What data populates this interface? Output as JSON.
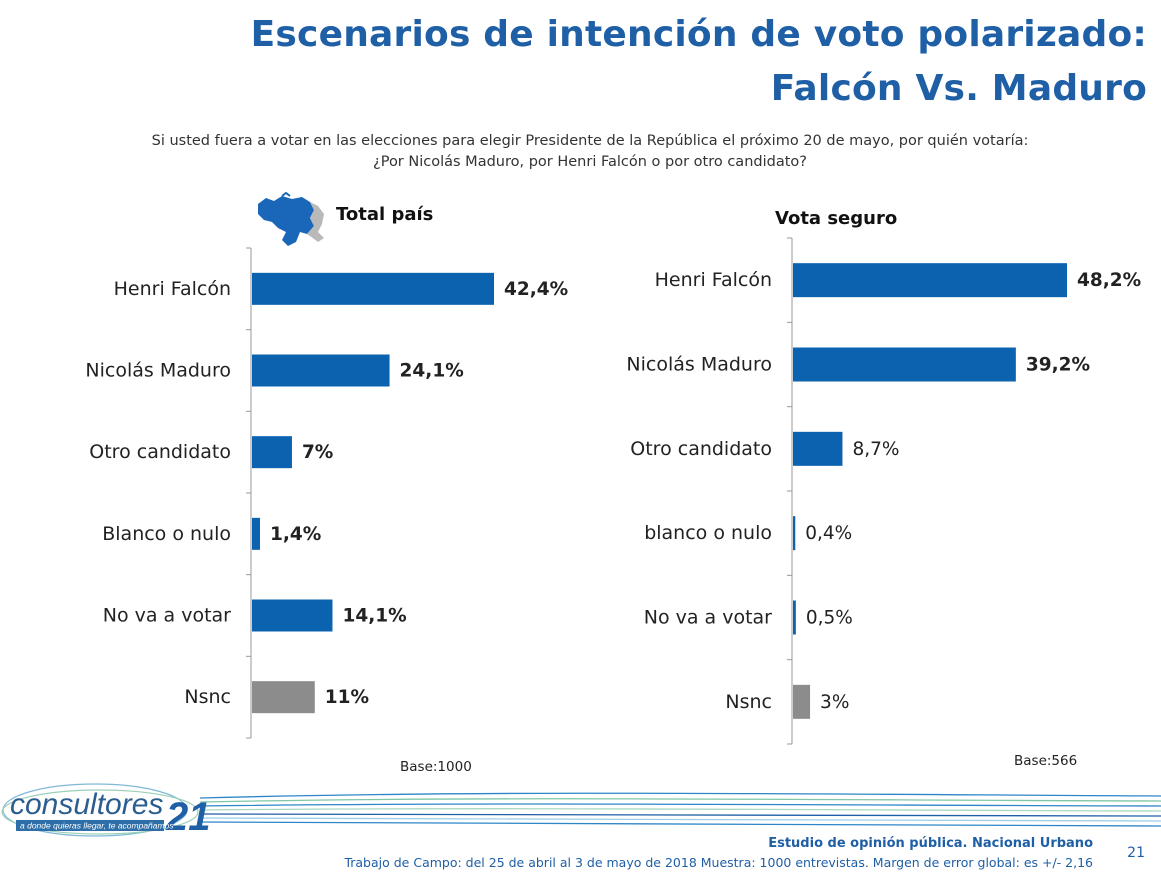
{
  "title": {
    "line1": "Escenarios de intención de voto polarizado:",
    "line2": "Falcón Vs. Maduro"
  },
  "question": {
    "line1": "Si usted fuera a votar en las elecciones para elegir Presidente de la República el próximo 20 de mayo, por quién votaría:",
    "line2": "¿Por Nicolás Maduro, por Henri Falcón o por otro candidato?"
  },
  "colors": {
    "primary": "#0b63b0",
    "nsnc": "#8c8c8c",
    "title": "#1f5fa6"
  },
  "logo": {
    "name": "consultores",
    "number": "21",
    "tagline": "a donde quieras llegar, te acompañamos"
  },
  "map_icon": "venezuela-map-icon",
  "chart_data": [
    {
      "type": "bar",
      "orientation": "horizontal",
      "title": "Total país",
      "categories": [
        "Henri Falcón",
        "Nicolás Maduro",
        "Otro candidato",
        "Blanco o nulo",
        "No va a votar",
        "Nsnc"
      ],
      "values": [
        42.4,
        24.1,
        7,
        1.4,
        14.1,
        11
      ],
      "labels": [
        "42,4%",
        "24,1%",
        "7%",
        "1,4%",
        "14,1%",
        "11%"
      ],
      "bold_labels": true,
      "base": "Base:1000"
    },
    {
      "type": "bar",
      "orientation": "horizontal",
      "title": "Vota seguro",
      "categories": [
        "Henri Falcón",
        "Nicolás Maduro",
        "Otro candidato",
        "blanco o nulo",
        "No va a votar",
        "Nsnc"
      ],
      "values": [
        48.2,
        39.2,
        8.7,
        0.4,
        0.5,
        3
      ],
      "labels": [
        "48,2%",
        "39,2%",
        "8,7%",
        "0,4%",
        "0,5%",
        "3%"
      ],
      "bold_labels_first": 2,
      "base": "Base:566"
    }
  ],
  "footer": {
    "study": "Estudio de opinión pública. Nacional Urbano",
    "fieldwork": "Trabajo de Campo: del 25 de abril al 3 de mayo de 2018 Muestra: 1000  entrevistas. Margen de error global: es +/- 2,16",
    "page_number": "21"
  }
}
